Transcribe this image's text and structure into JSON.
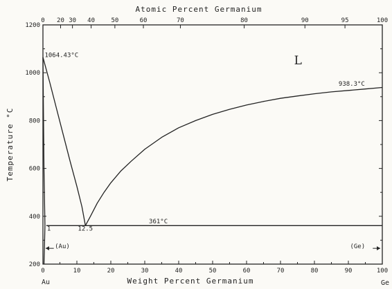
{
  "chart_data": {
    "type": "line",
    "title": "",
    "x_bottom_label": "Weight Percent Germanium",
    "x_top_label": "Atomic Percent Germanium",
    "ylabel": "Temperature °C",
    "xlim": [
      0,
      100
    ],
    "ylim": [
      200,
      1200
    ],
    "y_ticks": [
      "200",
      "400",
      "600",
      "800",
      "1000",
      "1200"
    ],
    "x_bottom_ticks": [
      "0",
      "10",
      "20",
      "30",
      "40",
      "50",
      "60",
      "70",
      "80",
      "90",
      "100"
    ],
    "x_top_ticks": [
      {
        "label": "0",
        "wt": 0
      },
      {
        "label": "20",
        "wt": 5.2
      },
      {
        "label": "30",
        "wt": 8.7
      },
      {
        "label": "40",
        "wt": 14.2
      },
      {
        "label": "50",
        "wt": 21.2
      },
      {
        "label": "60",
        "wt": 29.6
      },
      {
        "label": "70",
        "wt": 40.5
      },
      {
        "label": "80",
        "wt": 59.3
      },
      {
        "label": "90",
        "wt": 77.2
      },
      {
        "label": "95",
        "wt": 89.0
      },
      {
        "label": "100",
        "wt": 100
      }
    ],
    "series": [
      {
        "points": [
          [
            0,
            1064.43
          ],
          [
            2,
            960
          ],
          [
            4,
            850
          ],
          [
            6,
            740
          ],
          [
            8,
            630
          ],
          [
            10,
            525
          ],
          [
            11.5,
            440
          ],
          [
            12.5,
            361
          ]
        ]
      },
      {
        "points": [
          [
            12.5,
            361
          ],
          [
            14,
            400
          ],
          [
            16,
            455
          ],
          [
            18,
            500
          ],
          [
            20,
            540
          ],
          [
            23,
            590
          ],
          [
            26,
            630
          ],
          [
            30,
            680
          ],
          [
            35,
            730
          ],
          [
            40,
            770
          ],
          [
            45,
            800
          ],
          [
            50,
            826
          ],
          [
            55,
            847
          ],
          [
            60,
            865
          ],
          [
            65,
            880
          ],
          [
            70,
            893
          ],
          [
            75,
            903
          ],
          [
            80,
            912
          ],
          [
            85,
            920
          ],
          [
            90,
            926
          ],
          [
            95,
            932
          ],
          [
            100,
            938.3
          ]
        ]
      },
      {
        "points": [
          [
            0,
            1064.43
          ],
          [
            0.3,
            600
          ],
          [
            0.6,
            361
          ],
          [
            0.4,
            250
          ],
          [
            0.3,
            200
          ]
        ]
      },
      {
        "points": [
          [
            1,
            361
          ],
          [
            100,
            361
          ]
        ]
      }
    ],
    "annotations": [
      {
        "text": "1064.43°C",
        "x": 0.5,
        "y": 1065
      },
      {
        "text": "938.3°C",
        "x": 91,
        "y": 946
      },
      {
        "text": "361°C",
        "x": 34,
        "y": 370
      },
      {
        "text": "12.5",
        "x": 12.5,
        "y": 340
      },
      {
        "text": "1",
        "x": 1.2,
        "y": 340
      },
      {
        "text": "L",
        "x": 74,
        "y": 1035
      },
      {
        "text": "(Au)",
        "x": 3.5,
        "y": 266
      },
      {
        "text": "(Ge)",
        "x": 90.5,
        "y": 266
      }
    ],
    "element_labels": {
      "left": "Au",
      "right": "Ge"
    },
    "grid": false
  }
}
